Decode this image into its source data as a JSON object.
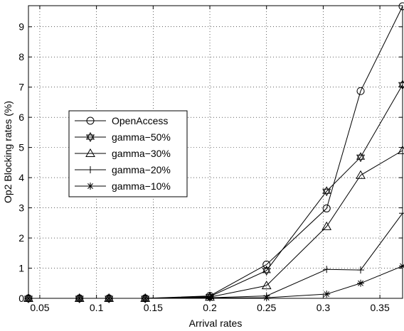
{
  "chart_data": {
    "type": "line",
    "title": "",
    "xlabel": "Arrival rates",
    "ylabel": "Op2 Blocking rates (%)",
    "xlim": [
      0.04,
      0.37
    ],
    "ylim": [
      0,
      9.7
    ],
    "grid": true,
    "legend_position": "center-left",
    "x_ticks": [
      "0.05",
      "0.1",
      "0.15",
      "0.2",
      "0.25",
      "0.3",
      "0.35"
    ],
    "y_ticks": [
      "0",
      "1",
      "2",
      "3",
      "4",
      "5",
      "6",
      "7",
      "8",
      "9"
    ],
    "series": [
      {
        "name": "OpenAccess",
        "marker": "circle",
        "x": [
          0.04,
          0.085,
          0.111,
          0.143,
          0.2,
          0.25,
          0.303,
          0.333,
          0.37
        ],
        "y": [
          0,
          0,
          0,
          0,
          0.08,
          1.12,
          2.98,
          6.87,
          9.68
        ]
      },
      {
        "name": "gamma−50%",
        "marker": "hexagram",
        "x": [
          0.04,
          0.085,
          0.111,
          0.143,
          0.2,
          0.25,
          0.303,
          0.333,
          0.37
        ],
        "y": [
          0,
          0,
          0,
          0,
          0.06,
          0.92,
          3.55,
          4.68,
          7.08
        ]
      },
      {
        "name": "gamma−30%",
        "marker": "triangle",
        "x": [
          0.04,
          0.085,
          0.111,
          0.143,
          0.2,
          0.25,
          0.303,
          0.333,
          0.37
        ],
        "y": [
          0,
          0,
          0,
          0,
          0.04,
          0.42,
          2.38,
          4.08,
          4.9
        ]
      },
      {
        "name": "gamma−20%",
        "marker": "plus",
        "x": [
          0.04,
          0.085,
          0.111,
          0.143,
          0.2,
          0.25,
          0.303,
          0.333,
          0.37
        ],
        "y": [
          0,
          0,
          0,
          0,
          0.02,
          0.08,
          0.96,
          0.94,
          2.82
        ]
      },
      {
        "name": "gamma−10%",
        "marker": "asterisk",
        "x": [
          0.04,
          0.085,
          0.111,
          0.143,
          0.2,
          0.25,
          0.303,
          0.333,
          0.37
        ],
        "y": [
          0,
          0,
          0,
          0,
          0.01,
          0.02,
          0.14,
          0.5,
          1.07
        ]
      }
    ]
  }
}
